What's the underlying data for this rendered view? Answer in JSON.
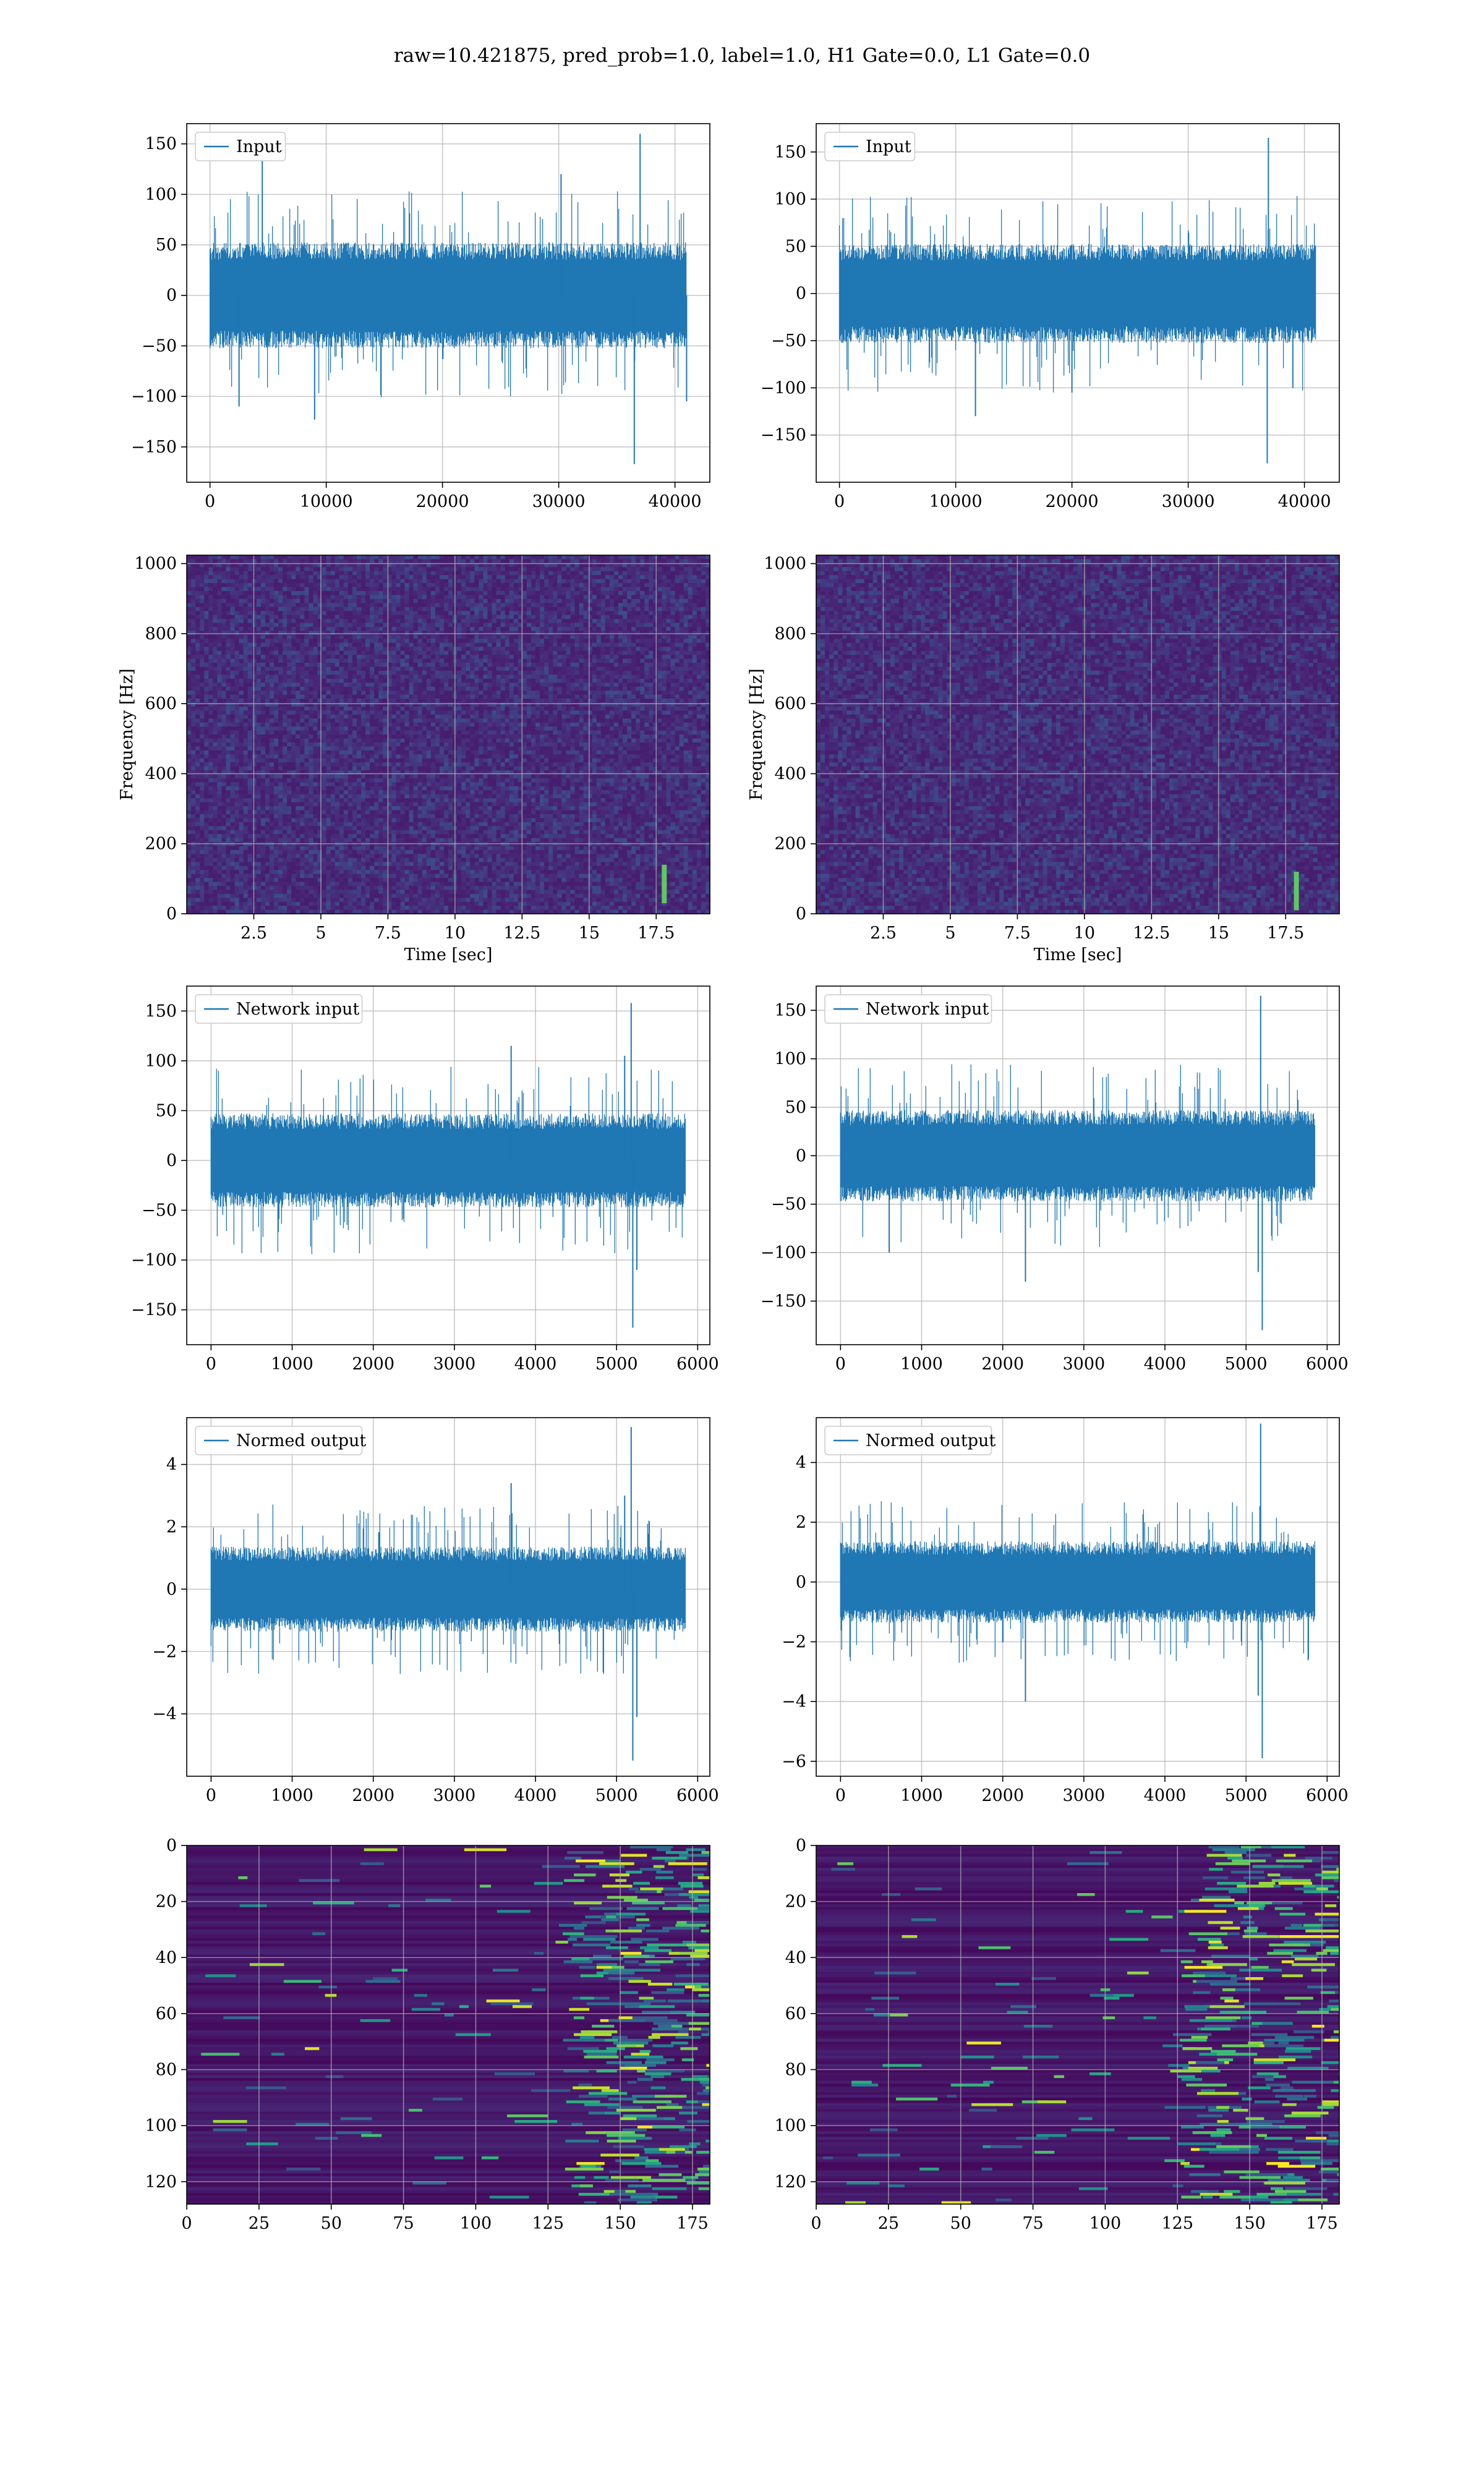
{
  "title": "raw=10.421875, pred_prob=1.0, label=1.0, H1 Gate=0.0, L1 Gate=0.0",
  "colors": {
    "signal": "#1f77b4",
    "grid": "#b0b0b0",
    "viridis_dark": "#440154"
  },
  "chart_data": [
    {
      "id": "h1-input",
      "type": "line",
      "series": [
        {
          "name": "Input"
        }
      ],
      "legend": "upper-left",
      "xlim": [
        -2000,
        43000
      ],
      "ylim": [
        -185,
        170
      ],
      "xticks": [
        0,
        10000,
        20000,
        30000,
        40000
      ],
      "yticks": [
        -150,
        -100,
        -50,
        0,
        50,
        100,
        150
      ],
      "n_samples": 40960,
      "amplitude_band": [
        -50,
        50
      ],
      "spikes": [
        [
          37000,
          160
        ],
        [
          36500,
          -167
        ],
        [
          30200,
          120
        ],
        [
          4500,
          135
        ],
        [
          9000,
          -123
        ],
        [
          2500,
          -110
        ],
        [
          41000,
          -105
        ]
      ],
      "grid": true
    },
    {
      "id": "l1-input",
      "type": "line",
      "series": [
        {
          "name": "Input"
        }
      ],
      "legend": "upper-left",
      "xlim": [
        -2000,
        43000
      ],
      "ylim": [
        -200,
        180
      ],
      "xticks": [
        0,
        10000,
        20000,
        30000,
        40000
      ],
      "yticks": [
        -150,
        -100,
        -50,
        0,
        50,
        100,
        150
      ],
      "n_samples": 40960,
      "amplitude_band": [
        -50,
        50
      ],
      "spikes": [
        [
          36900,
          165
        ],
        [
          36800,
          -180
        ],
        [
          11700,
          -130
        ],
        [
          20000,
          -105
        ],
        [
          39000,
          -100
        ]
      ],
      "grid": true
    },
    {
      "id": "h1-spectrogram",
      "type": "heatmap",
      "colormap": "viridis",
      "xlim": [
        0,
        19.5
      ],
      "ylim": [
        0,
        1024
      ],
      "xticks": [
        2.5,
        5.0,
        7.5,
        10.0,
        12.5,
        15.0,
        17.5
      ],
      "yticks": [
        0,
        200,
        400,
        600,
        800,
        1000
      ],
      "xlabel": "Time [sec]",
      "ylabel": "Frequency [Hz]",
      "hotspots": [
        [
          17.8,
          60
        ],
        [
          17.8,
          110
        ]
      ],
      "grid": true
    },
    {
      "id": "l1-spectrogram",
      "type": "heatmap",
      "colormap": "viridis",
      "xlim": [
        0,
        19.5
      ],
      "ylim": [
        0,
        1024
      ],
      "xticks": [
        2.5,
        5.0,
        7.5,
        10.0,
        12.5,
        15.0,
        17.5
      ],
      "yticks": [
        0,
        200,
        400,
        600,
        800,
        1000
      ],
      "xlabel": "Time [sec]",
      "ylabel": "Frequency [Hz]",
      "hotspots": [
        [
          17.9,
          40
        ],
        [
          17.9,
          90
        ]
      ],
      "grid": true
    },
    {
      "id": "h1-network-input",
      "type": "line",
      "series": [
        {
          "name": "Network input"
        }
      ],
      "legend": "upper-left",
      "xlim": [
        -300,
        6150
      ],
      "ylim": [
        -185,
        175
      ],
      "xticks": [
        0,
        1000,
        2000,
        3000,
        4000,
        5000,
        6000
      ],
      "yticks": [
        -150,
        -100,
        -50,
        0,
        50,
        100,
        150
      ],
      "n_samples": 5850,
      "amplitude_band": [
        -45,
        45
      ],
      "spikes": [
        [
          5180,
          158
        ],
        [
          5200,
          -168
        ],
        [
          3700,
          115
        ],
        [
          5100,
          105
        ],
        [
          5250,
          -110
        ]
      ],
      "grid": true
    },
    {
      "id": "l1-network-input",
      "type": "line",
      "series": [
        {
          "name": "Network input"
        }
      ],
      "legend": "upper-left",
      "xlim": [
        -300,
        6150
      ],
      "ylim": [
        -195,
        175
      ],
      "xticks": [
        0,
        1000,
        2000,
        3000,
        4000,
        5000,
        6000
      ],
      "yticks": [
        -150,
        -100,
        -50,
        0,
        50,
        100,
        150
      ],
      "n_samples": 5850,
      "amplitude_band": [
        -45,
        45
      ],
      "spikes": [
        [
          5180,
          165
        ],
        [
          5200,
          -180
        ],
        [
          2280,
          -130
        ],
        [
          5150,
          -120
        ],
        [
          600,
          -100
        ]
      ],
      "grid": true
    },
    {
      "id": "h1-normed-output",
      "type": "line",
      "series": [
        {
          "name": "Normed output"
        }
      ],
      "legend": "upper-left",
      "xlim": [
        -300,
        6150
      ],
      "ylim": [
        -6.0,
        5.5
      ],
      "xticks": [
        0,
        1000,
        2000,
        3000,
        4000,
        5000,
        6000
      ],
      "yticks": [
        -4,
        -2,
        0,
        2,
        4
      ],
      "n_samples": 5850,
      "amplitude_band": [
        -1.3,
        1.3
      ],
      "spikes": [
        [
          5180,
          5.2
        ],
        [
          5200,
          -5.5
        ],
        [
          3700,
          3.4
        ],
        [
          5100,
          3.0
        ],
        [
          5250,
          -4.1
        ]
      ],
      "grid": true
    },
    {
      "id": "l1-normed-output",
      "type": "line",
      "series": [
        {
          "name": "Normed output"
        }
      ],
      "legend": "upper-left",
      "xlim": [
        -300,
        6150
      ],
      "ylim": [
        -6.5,
        5.5
      ],
      "xticks": [
        0,
        1000,
        2000,
        3000,
        4000,
        5000,
        6000
      ],
      "yticks": [
        -6,
        -4,
        -2,
        0,
        2,
        4
      ],
      "n_samples": 5850,
      "amplitude_band": [
        -1.3,
        1.3
      ],
      "spikes": [
        [
          5180,
          5.3
        ],
        [
          5200,
          -5.9
        ],
        [
          2280,
          -4.0
        ],
        [
          5150,
          -3.8
        ]
      ],
      "grid": true
    },
    {
      "id": "h1-feature-map",
      "type": "heatmap",
      "colormap": "viridis",
      "xlim": [
        0,
        181
      ],
      "ylim": [
        128,
        0
      ],
      "xticks": [
        0,
        25,
        50,
        75,
        100,
        125,
        150,
        175
      ],
      "yticks": [
        0,
        20,
        40,
        60,
        80,
        100,
        120
      ],
      "active_from_col": 130,
      "grid": true
    },
    {
      "id": "l1-feature-map",
      "type": "heatmap",
      "colormap": "viridis",
      "xlim": [
        0,
        181
      ],
      "ylim": [
        128,
        0
      ],
      "xticks": [
        0,
        25,
        50,
        75,
        100,
        125,
        150,
        175
      ],
      "yticks": [
        0,
        20,
        40,
        60,
        80,
        100,
        120
      ],
      "active_from_col": 125,
      "grid": true
    }
  ]
}
